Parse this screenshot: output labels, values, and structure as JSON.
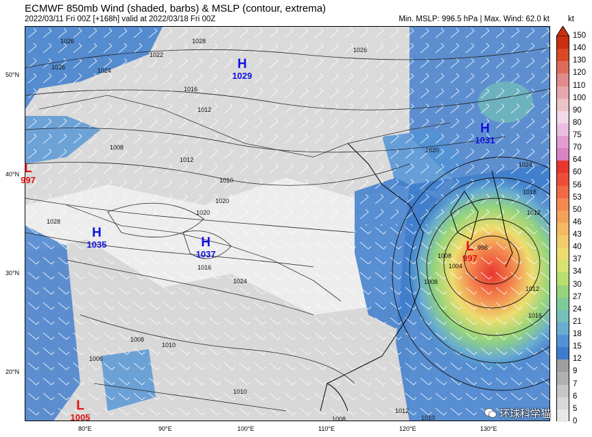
{
  "header": {
    "title": "ECMWF 850mb Wind (shaded, barbs) & MSLP (contour, extrema)",
    "subtitle": "2022/03/11 Fri 00Z [+168h] valid at 2022/03/18 Fri 00Z",
    "stats": "Min. MSLP: 996.5 hPa | Max. Wind: 62.0 kt",
    "units": "kt"
  },
  "axes": {
    "lat_labels": [
      "50°N",
      "40°N",
      "30°N",
      "20°N"
    ],
    "lon_labels": [
      "80°E",
      "90°E",
      "100°E",
      "110°E",
      "120°E",
      "130°E"
    ]
  },
  "colorbar": {
    "levels": [
      "150",
      "140",
      "130",
      "120",
      "110",
      "100",
      "90",
      "80",
      "75",
      "70",
      "64",
      "60",
      "56",
      "53",
      "50",
      "46",
      "43",
      "40",
      "37",
      "34",
      "30",
      "27",
      "24",
      "21",
      "18",
      "15",
      "12",
      "9",
      "7",
      "6",
      "5",
      "0"
    ],
    "colors": [
      "#c83010",
      "#d84a24",
      "#de6b5a",
      "#e28a8a",
      "#e6a8ac",
      "#ecc4c8",
      "#f2d8e8",
      "#ebbde0",
      "#e39bd0",
      "#d884c2",
      "#e8352f",
      "#ef4d3a",
      "#f26a45",
      "#f48950",
      "#f6a15a",
      "#f5b865",
      "#f2cc6a",
      "#eddd6e",
      "#d6e36e",
      "#b7df70",
      "#95d47d",
      "#7ecb9a",
      "#75c0b8",
      "#68acd0",
      "#5193d6",
      "#3d7ccd",
      "#9e9e9e",
      "#b0b0b0",
      "#c6c6c6",
      "#d8d8d8",
      "#e8e8e8"
    ]
  },
  "extrema": [
    {
      "type": "H",
      "value": "1029",
      "color": "#1010e0"
    },
    {
      "type": "H",
      "value": "1031",
      "color": "#1010e0"
    },
    {
      "type": "H",
      "value": "1035",
      "color": "#1010e0"
    },
    {
      "type": "H",
      "value": "1037",
      "color": "#1010e0"
    },
    {
      "type": "L",
      "value": "997",
      "color": "#e01010"
    },
    {
      "type": "L",
      "value": "997",
      "color": "#e01010"
    },
    {
      "type": "L",
      "value": "1005",
      "color": "#e01010"
    }
  ],
  "isobar_labels": [
    "1022",
    "1024",
    "1026",
    "1028",
    "1026",
    "1016",
    "1012",
    "1008",
    "1010",
    "1012",
    "1020",
    "1028",
    "1024",
    "1016",
    "1020",
    "1020",
    "1026",
    "1024",
    "1018",
    "1012",
    "1008",
    "1004",
    "1008",
    "1012",
    "1016",
    "1010",
    "1008",
    "1006",
    "1010",
    "1008",
    "1012",
    "1010",
    "998"
  ],
  "watermark": "环球科学猫"
}
